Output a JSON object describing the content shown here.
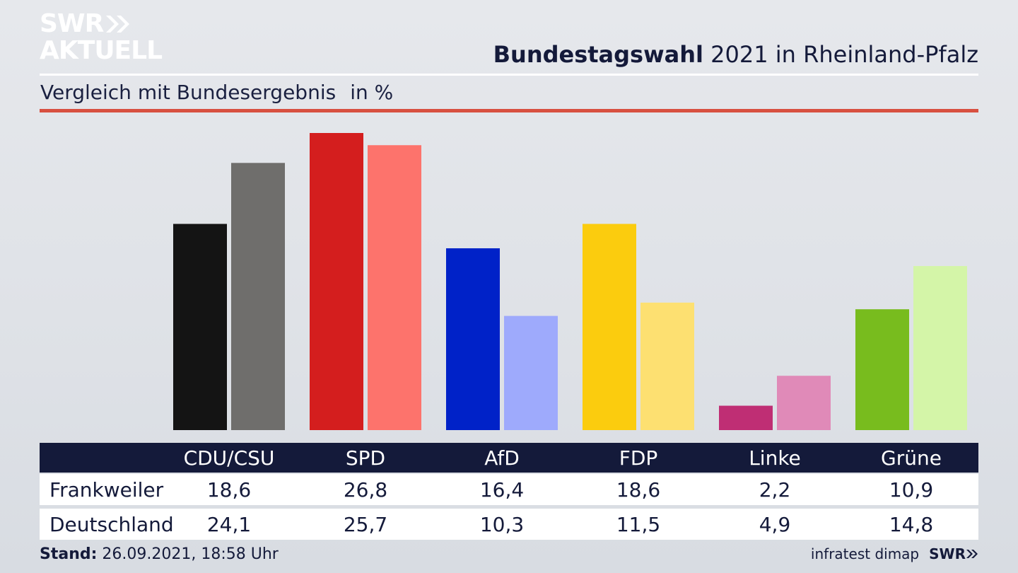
{
  "logo": {
    "line1": "SWR",
    "line2": "AKTUELL"
  },
  "header": {
    "title_bold": "Bundestagswahl",
    "title_rest": " 2021 in Rheinland-Pfalz",
    "subtitle": "Vergleich mit Bundesergebnis",
    "unit": "in %"
  },
  "table": {
    "rows": [
      {
        "label": "Frankweiler",
        "values": [
          "18,6",
          "26,8",
          "16,4",
          "18,6",
          "2,2",
          "10,9"
        ]
      },
      {
        "label": "Deutschland",
        "values": [
          "24,1",
          "25,7",
          "10,3",
          "11,5",
          "4,9",
          "14,8"
        ]
      }
    ]
  },
  "footer": {
    "stand_label": "Stand:",
    "stand_value": " 26.09.2021, 18:58 Uhr",
    "source": "infratest dimap",
    "brand": "SWR"
  },
  "chart_data": {
    "type": "bar",
    "categories": [
      "CDU/CSU",
      "SPD",
      "AfD",
      "FDP",
      "Linke",
      "Grüne"
    ],
    "series": [
      {
        "name": "Frankweiler",
        "values": [
          18.6,
          26.8,
          16.4,
          18.6,
          2.2,
          10.9
        ],
        "colors": [
          "#141414",
          "#d41e1e",
          "#0022c8",
          "#fbcc0e",
          "#bf2e74",
          "#78bc1e"
        ]
      },
      {
        "name": "Deutschland",
        "values": [
          24.1,
          25.7,
          10.3,
          11.5,
          4.9,
          14.8
        ],
        "colors": [
          "#6f6e6c",
          "#fd736c",
          "#9eaafc",
          "#fde071",
          "#e08ab8",
          "#d4f5a8"
        ]
      }
    ],
    "ylim": [
      0,
      26.8
    ],
    "grid": false,
    "legend": "table-below"
  }
}
